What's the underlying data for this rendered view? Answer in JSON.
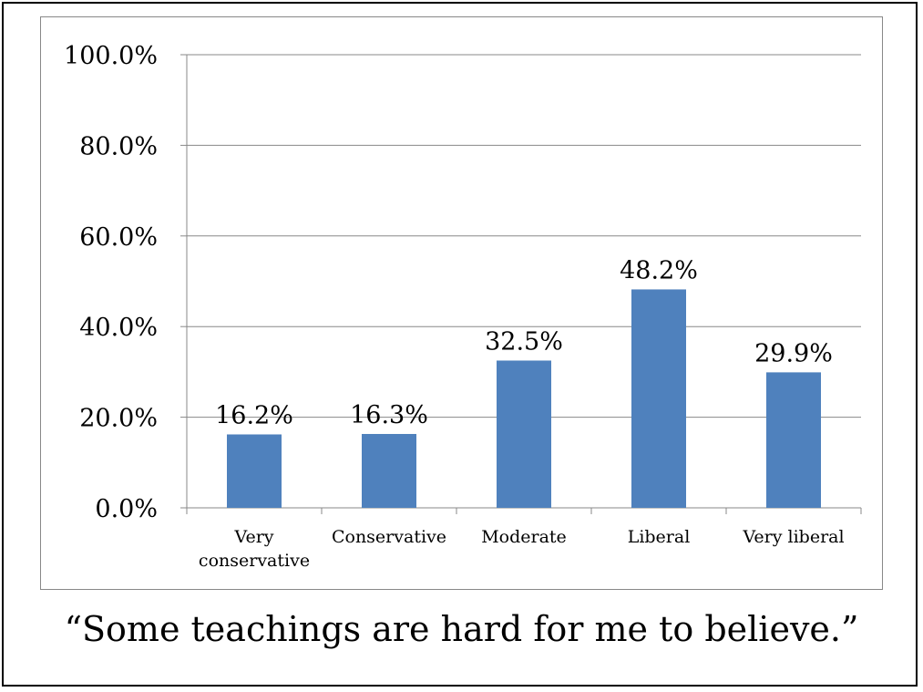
{
  "chart_data": {
    "type": "bar",
    "categories": [
      "Very conservative",
      "Conservative",
      "Moderate",
      "Liberal",
      "Very liberal"
    ],
    "category_label_lines": [
      [
        "Very",
        "conservative"
      ],
      [
        "Conservative"
      ],
      [
        "Moderate"
      ],
      [
        "Liberal"
      ],
      [
        "Very liberal"
      ]
    ],
    "values": [
      16.2,
      16.3,
      32.5,
      48.2,
      29.9
    ],
    "data_labels": [
      "16.2%",
      "16.3%",
      "32.5%",
      "48.2%",
      "29.9%"
    ],
    "y_ticks": [
      0,
      20,
      40,
      60,
      80,
      100
    ],
    "y_tick_labels": [
      "0.0%",
      "20.0%",
      "40.0%",
      "60.0%",
      "80.0%",
      "100.0%"
    ],
    "ylim": [
      0,
      100
    ],
    "grid": true,
    "legend": "none",
    "bar_color": "#4f81bd",
    "gridline_color": "#888888"
  },
  "caption": "“Some teachings are hard for me to believe.”"
}
